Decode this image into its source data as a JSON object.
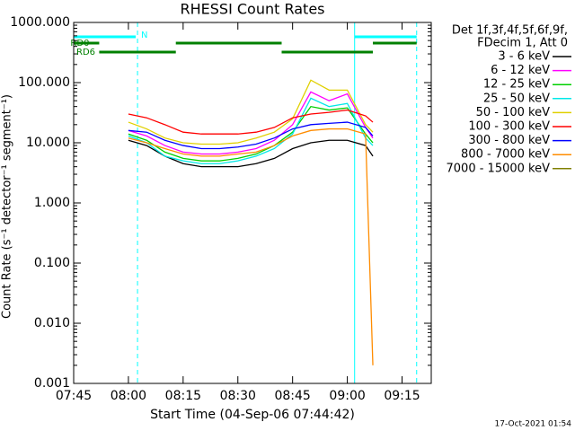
{
  "chart_data": {
    "type": "line",
    "title": "RHESSI Count Rates",
    "xlabel": "Start Time (04-Sep-06 07:44:42)",
    "ylabel": "Count Rate (s⁻¹ detector⁻¹ segment⁻¹)",
    "footer": "17-Oct-2021 01:54",
    "legend_title": [
      "Det 1f,3f,4f,5f,6f,9f,",
      "FDecim 1, Att 0"
    ],
    "legend": "outside-right",
    "log_y": true,
    "xlim": [
      465,
      563
    ],
    "xticks": [
      {
        "value": 465,
        "label": "07:45"
      },
      {
        "value": 480,
        "label": "08:00"
      },
      {
        "value": 495,
        "label": "08:15"
      },
      {
        "value": 510,
        "label": "08:30"
      },
      {
        "value": 525,
        "label": "08:45"
      },
      {
        "value": 540,
        "label": "09:00"
      },
      {
        "value": 555,
        "label": "09:15"
      }
    ],
    "ylim": [
      0.001,
      1000
    ],
    "yticks": [
      {
        "value": 0.001,
        "label": "0.001"
      },
      {
        "value": 0.01,
        "label": "0.010"
      },
      {
        "value": 0.1,
        "label": "0.100"
      },
      {
        "value": 1,
        "label": "1.000"
      },
      {
        "value": 10,
        "label": "10.000"
      },
      {
        "value": 100,
        "label": "100.000"
      },
      {
        "value": 1000,
        "label": "1000.000"
      }
    ],
    "x": [
      480,
      485,
      490,
      495,
      500,
      505,
      510,
      515,
      520,
      525,
      530,
      535,
      540,
      545,
      547
    ],
    "series": [
      {
        "name": "3 - 6 keV",
        "color": "#000000",
        "values": [
          11,
          9,
          6,
          4.5,
          4,
          4,
          4,
          4.5,
          5.5,
          8,
          10,
          11,
          11,
          9,
          6
        ]
      },
      {
        "name": "6 - 12 keV",
        "color": "#ff00ff",
        "values": [
          16,
          13,
          9,
          7,
          6.5,
          6.5,
          7,
          8,
          11,
          20,
          70,
          50,
          65,
          18,
          12
        ]
      },
      {
        "name": "12 - 25 keV",
        "color": "#00d000",
        "values": [
          14,
          11,
          7,
          5.5,
          5,
          5,
          5.5,
          6.5,
          9,
          15,
          40,
          35,
          38,
          14,
          10
        ]
      },
      {
        "name": "25 - 50 keV",
        "color": "#00e8e8",
        "values": [
          13,
          10,
          6,
          5,
          4.5,
          4.5,
          5,
          6,
          8,
          14,
          55,
          40,
          45,
          12,
          9
        ]
      },
      {
        "name": "50 - 100 keV",
        "color": "#e0d000",
        "values": [
          22,
          17,
          12,
          10,
          9.5,
          9.5,
          10,
          12,
          15,
          25,
          110,
          75,
          75,
          20,
          15
        ]
      },
      {
        "name": "100 - 300 keV",
        "color": "#ff0000",
        "values": [
          30,
          26,
          20,
          15,
          14,
          14,
          14,
          15,
          18,
          26,
          30,
          32,
          35,
          28,
          22
        ]
      },
      {
        "name": "300 - 800 keV",
        "color": "#0000ff",
        "values": [
          16,
          15,
          11,
          9,
          8,
          8,
          8.5,
          9.5,
          12,
          17,
          20,
          21,
          22,
          18,
          13
        ]
      },
      {
        "name": "800 - 7000 keV",
        "color": "#ff8c00",
        "values": [
          12,
          10,
          8,
          6.5,
          6,
          6,
          6.5,
          7,
          9,
          13,
          16,
          17,
          17,
          14,
          0.002
        ]
      },
      {
        "name": "7000 - 15000 keV",
        "color": "#808000",
        "values": [
          null,
          null,
          null,
          null,
          null,
          null,
          null,
          null,
          null,
          null,
          null,
          null,
          null,
          null,
          null
        ]
      }
    ],
    "flags": [
      {
        "label": "N",
        "color": "#00ffff",
        "segments": [
          [
            465,
            482
          ],
          [
            542,
            559
          ]
        ]
      },
      {
        "label": "RD0",
        "color": "#008000",
        "segments": [
          [
            465,
            472
          ],
          [
            493,
            522
          ],
          [
            547,
            559
          ]
        ]
      },
      {
        "label": "RD6",
        "color": "#008000",
        "segments": [
          [
            472,
            493
          ],
          [
            522,
            547
          ]
        ]
      }
    ],
    "vlines": [
      {
        "x": 465,
        "style": "solid"
      },
      {
        "x": 482.5,
        "style": "dashed"
      },
      {
        "x": 542,
        "style": "solid"
      },
      {
        "x": 559,
        "style": "dashed"
      }
    ],
    "vline_color": "#00ffff"
  }
}
